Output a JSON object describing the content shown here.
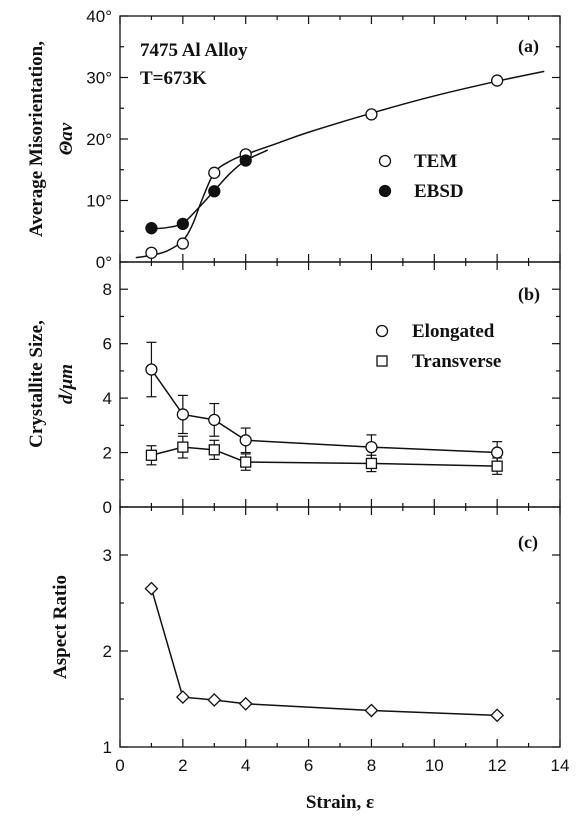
{
  "chart_data": [
    {
      "id": "a",
      "type": "scatter",
      "panel_label": "(a)",
      "annotation": [
        "7475 Al Alloy",
        "T=673K"
      ],
      "ylabel": [
        "Average Misorientation,",
        "Θav"
      ],
      "ylim": [
        0,
        40
      ],
      "yticks": [
        "0°",
        "10°",
        "20°",
        "30°",
        "40°"
      ],
      "ytick_values": [
        0,
        10,
        20,
        30,
        40
      ],
      "legend": "right-middle",
      "series": [
        {
          "name": "TEM",
          "marker": "open-circle",
          "x": [
            1,
            2,
            3,
            4,
            8,
            12
          ],
          "y": [
            1.5,
            3,
            14.5,
            17.5,
            24,
            29.5
          ]
        },
        {
          "name": "EBSD",
          "marker": "filled-circle",
          "x": [
            1,
            2,
            3,
            4
          ],
          "y": [
            5.5,
            6.2,
            11.5,
            16.5
          ]
        }
      ],
      "fit_curves": [
        {
          "x": [
            0.5,
            1,
            1.5,
            2,
            2.3,
            2.6,
            3,
            3.5,
            4,
            5,
            6,
            8,
            10,
            12,
            13.5
          ],
          "y": [
            0.7,
            1.1,
            1.8,
            3.5,
            6,
            10,
            14.5,
            16.4,
            17.5,
            19.3,
            21.1,
            24.2,
            27,
            29.4,
            31
          ]
        },
        {
          "x": [
            1,
            1.5,
            2,
            2.5,
            3,
            3.5,
            4,
            4.7
          ],
          "y": [
            5.4,
            5.6,
            6.3,
            8.8,
            11.6,
            14.4,
            16.5,
            18.2
          ]
        }
      ]
    },
    {
      "id": "b",
      "type": "line",
      "panel_label": "(b)",
      "ylabel": [
        "Crystallite Size,",
        "d/μm"
      ],
      "ylim": [
        0,
        9
      ],
      "yticks": [
        "0",
        "2",
        "4",
        "6",
        "8"
      ],
      "ytick_values": [
        0,
        2,
        4,
        6,
        8
      ],
      "legend": "top-right",
      "series": [
        {
          "name": "Elongated",
          "marker": "open-circle",
          "x": [
            1,
            2,
            3,
            4,
            8,
            12
          ],
          "y": [
            5.05,
            3.4,
            3.2,
            2.45,
            2.2,
            2.0
          ],
          "err": [
            1.0,
            0.7,
            0.6,
            0.45,
            0.45,
            0.4
          ]
        },
        {
          "name": "Transverse",
          "marker": "open-square",
          "x": [
            1,
            2,
            3,
            4,
            8,
            12
          ],
          "y": [
            1.9,
            2.2,
            2.1,
            1.65,
            1.6,
            1.5
          ],
          "err": [
            0.35,
            0.4,
            0.35,
            0.3,
            0.3,
            0.3
          ]
        }
      ]
    },
    {
      "id": "c",
      "type": "line",
      "panel_label": "(c)",
      "ylabel": [
        "Aspect Ratio"
      ],
      "ylim": [
        1,
        3.5
      ],
      "yticks": [
        "1",
        "2",
        "3"
      ],
      "ytick_values": [
        1,
        2,
        3
      ],
      "xlabel": "Strain, ε",
      "xlim": [
        0,
        14
      ],
      "xticks": [
        "0",
        "2",
        "4",
        "6",
        "8",
        "10",
        "12",
        "14"
      ],
      "xtick_values": [
        0,
        2,
        4,
        6,
        8,
        10,
        12,
        14
      ],
      "series": [
        {
          "marker": "open-diamond",
          "x": [
            1,
            2,
            3,
            4,
            8,
            12
          ],
          "y": [
            2.65,
            1.52,
            1.49,
            1.45,
            1.38,
            1.33
          ]
        }
      ]
    }
  ]
}
